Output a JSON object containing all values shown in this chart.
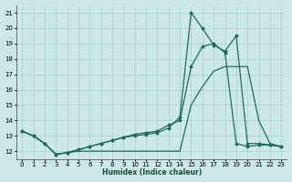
{
  "xlabel": "Humidex (Indice chaleur)",
  "bg_color": "#cce8e8",
  "grid_color": "#aacfcf",
  "line_color": "#1e6b5e",
  "xlim": [
    -0.5,
    23.5
  ],
  "ylim": [
    11.5,
    21.5
  ],
  "xticks": [
    0,
    1,
    2,
    3,
    4,
    5,
    6,
    7,
    8,
    9,
    10,
    11,
    12,
    13,
    14,
    15,
    16,
    17,
    18,
    19,
    20,
    21,
    22,
    23
  ],
  "yticks": [
    12,
    13,
    14,
    15,
    16,
    17,
    18,
    19,
    20,
    21
  ],
  "series_spike_x": [
    0,
    1,
    2,
    3,
    4,
    5,
    6,
    7,
    8,
    9,
    10,
    11,
    12,
    13,
    14,
    15,
    16,
    17,
    18,
    19,
    20,
    21,
    22,
    23
  ],
  "series_spike_y": [
    13.3,
    13.0,
    12.5,
    11.8,
    11.9,
    12.1,
    12.3,
    12.5,
    12.7,
    12.9,
    13.0,
    13.1,
    13.2,
    13.5,
    14.2,
    21.0,
    20.0,
    18.9,
    18.5,
    19.5,
    12.5,
    12.5,
    12.4,
    12.3
  ],
  "series_mid_x": [
    0,
    1,
    2,
    3,
    4,
    5,
    6,
    7,
    8,
    9,
    10,
    11,
    12,
    13,
    14,
    15,
    16,
    17,
    18,
    19,
    20,
    21,
    22,
    23
  ],
  "series_mid_y": [
    13.3,
    13.0,
    12.5,
    11.8,
    11.9,
    12.1,
    12.3,
    12.5,
    12.7,
    12.9,
    13.1,
    13.2,
    13.3,
    13.7,
    14.0,
    17.5,
    18.8,
    19.0,
    18.4,
    12.5,
    12.3,
    12.4,
    12.4,
    12.3
  ],
  "series_flat_x": [
    0,
    1,
    2,
    3,
    4,
    5,
    6,
    7,
    8,
    9,
    10,
    11,
    12,
    13,
    14,
    15,
    16,
    17,
    18,
    19,
    20,
    21,
    22,
    23
  ],
  "series_flat_y": [
    13.3,
    13.0,
    12.5,
    11.8,
    11.9,
    12.0,
    12.0,
    12.0,
    12.0,
    12.0,
    12.0,
    12.0,
    12.0,
    12.0,
    12.0,
    15.0,
    16.2,
    17.2,
    17.5,
    17.5,
    17.5,
    14.0,
    12.5,
    12.3
  ]
}
